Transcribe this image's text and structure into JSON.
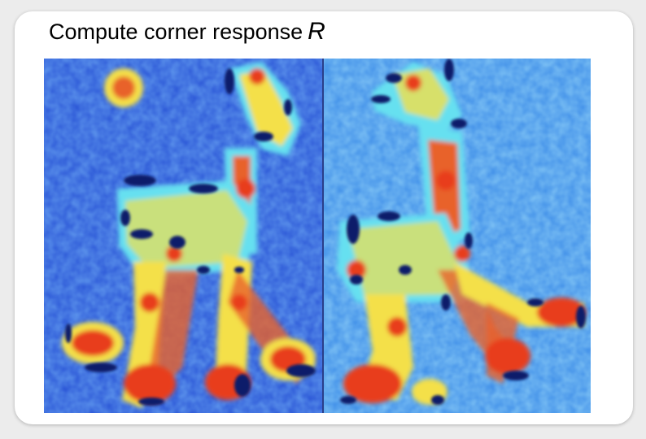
{
  "title": {
    "text": "Compute corner response",
    "variable": "R"
  },
  "panels": [
    {
      "name": "giraffe-left-response-map"
    },
    {
      "name": "giraffe-right-response-map"
    }
  ],
  "colormap": {
    "low": "#2a55d6",
    "low_mid": "#3f8ee8",
    "mid": "#66e0f0",
    "high_mid": "#f4e04a",
    "high": "#e83c1e",
    "negative": "#0d1f6b"
  }
}
